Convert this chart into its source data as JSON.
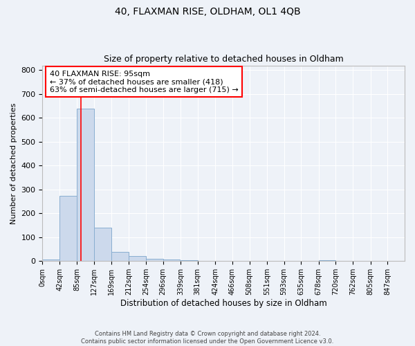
{
  "title": "40, FLAXMAN RISE, OLDHAM, OL1 4QB",
  "subtitle": "Size of property relative to detached houses in Oldham",
  "xlabel": "Distribution of detached houses by size in Oldham",
  "ylabel": "Number of detached properties",
  "bar_color": "#ccd9ec",
  "bar_edge_color": "#89aed0",
  "bin_labels": [
    "0sqm",
    "42sqm",
    "85sqm",
    "127sqm",
    "169sqm",
    "212sqm",
    "254sqm",
    "296sqm",
    "339sqm",
    "381sqm",
    "424sqm",
    "466sqm",
    "508sqm",
    "551sqm",
    "593sqm",
    "635sqm",
    "678sqm",
    "720sqm",
    "762sqm",
    "805sqm",
    "847sqm"
  ],
  "bar_values": [
    8,
    275,
    640,
    140,
    38,
    20,
    10,
    6,
    5,
    2,
    2,
    2,
    0,
    0,
    0,
    0,
    5,
    0,
    0,
    0,
    0
  ],
  "bin_edges": [
    0,
    42,
    85,
    127,
    169,
    212,
    254,
    296,
    339,
    381,
    424,
    466,
    508,
    551,
    593,
    635,
    678,
    720,
    762,
    805,
    847
  ],
  "red_line_x": 95,
  "ylim": [
    0,
    820
  ],
  "yticks": [
    0,
    100,
    200,
    300,
    400,
    500,
    600,
    700,
    800
  ],
  "annotation_line1": "40 FLAXMAN RISE: 95sqm",
  "annotation_line2": "← 37% of detached houses are smaller (418)",
  "annotation_line3": "63% of semi-detached houses are larger (715) →",
  "footer_text": "Contains HM Land Registry data © Crown copyright and database right 2024.\nContains public sector information licensed under the Open Government Licence v3.0.",
  "background_color": "#eef2f8",
  "grid_color": "#ffffff",
  "spine_color": "#bbbbbb"
}
